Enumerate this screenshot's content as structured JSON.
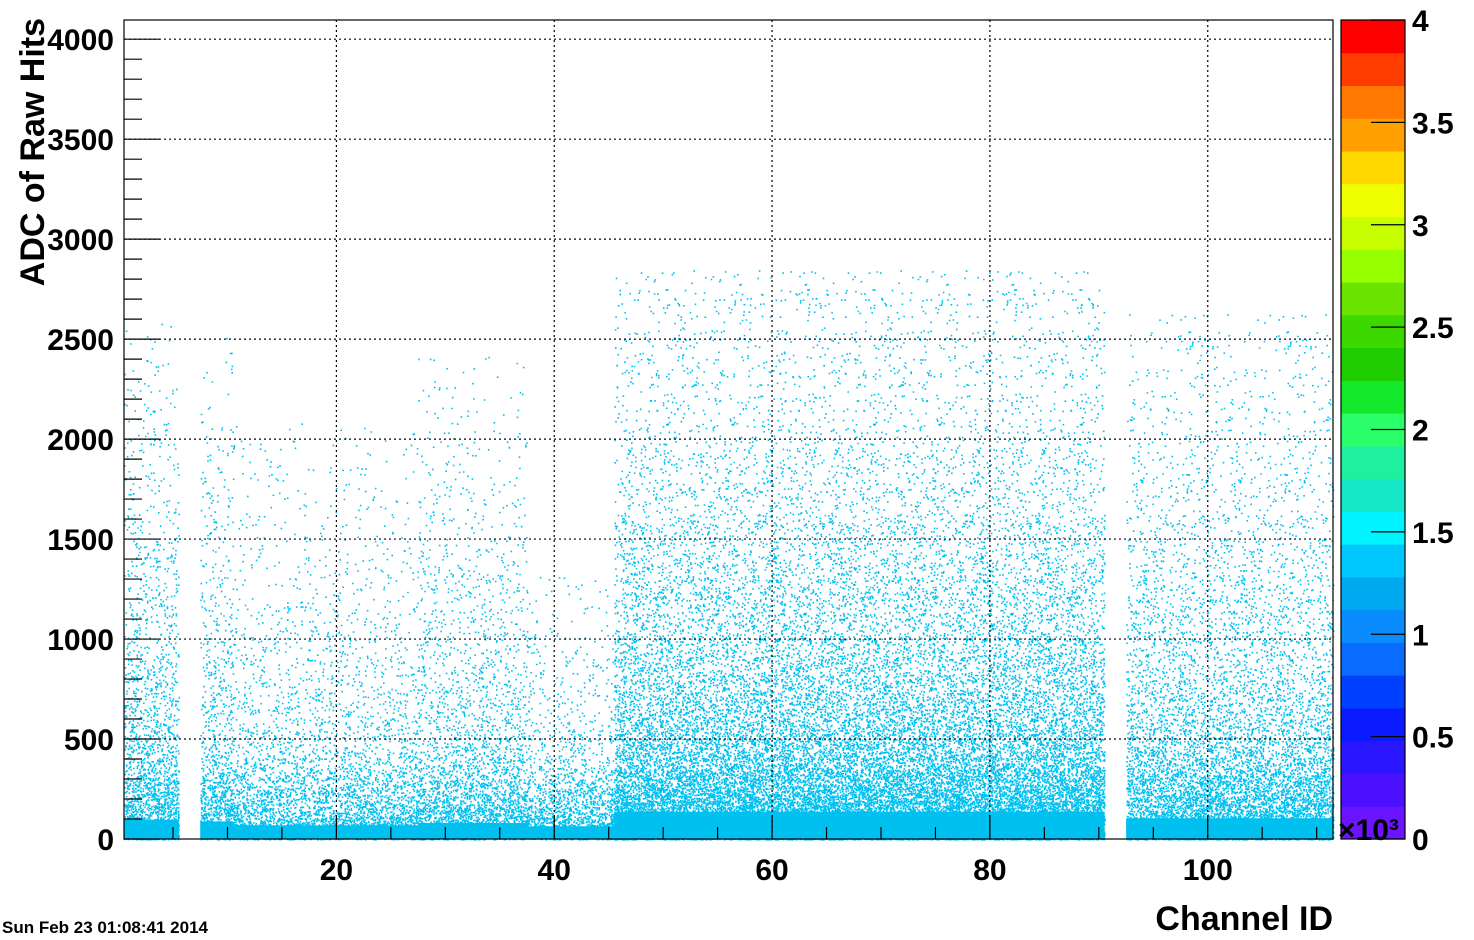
{
  "chart_data": {
    "type": "heatmap",
    "title": "",
    "xlabel": "Channel ID",
    "ylabel": "ADC of Raw Hits",
    "xlim": [
      0.5,
      111.5
    ],
    "ylim": [
      0,
      4096
    ],
    "x_ticks": [
      20,
      40,
      60,
      80,
      100
    ],
    "x_tick_labels": [
      "20",
      "40",
      "60",
      "80",
      "100"
    ],
    "y_ticks": [
      0,
      500,
      1000,
      1500,
      2000,
      2500,
      3000,
      3500,
      4000
    ],
    "y_tick_labels": [
      "0",
      "500",
      "1000",
      "1500",
      "2000",
      "2500",
      "3000",
      "3500",
      "4000"
    ],
    "grid": true,
    "colorbar": {
      "range": [
        0,
        4
      ],
      "multiplier_label": "×10³",
      "ticks": [
        0,
        0.5,
        1,
        1.5,
        2,
        2.5,
        3,
        3.5,
        4
      ],
      "tick_labels": [
        "0",
        "0.5",
        "1",
        "1.5",
        "2",
        "2.5",
        "3",
        "3.5",
        "4"
      ],
      "colors": [
        "#6a14ff",
        "#4b10ff",
        "#2a16ff",
        "#0a1cff",
        "#0040ff",
        "#0a6cff",
        "#0a8cff",
        "#00a8f0",
        "#00c8ff",
        "#00f4ff",
        "#14e8c8",
        "#1ef0a0",
        "#2aff6a",
        "#14e82a",
        "#1ecc00",
        "#3cd800",
        "#6ae400",
        "#96ff00",
        "#c8ff00",
        "#f0ff00",
        "#ffd800",
        "#ffa000",
        "#ff7800",
        "#ff3c00",
        "#ff0000"
      ]
    },
    "hit_color": "#00c0f0",
    "dead_channels": [
      6,
      7,
      91,
      92
    ],
    "channel_density": [
      {
        "channel_range": [
          1,
          5
        ],
        "relative_density": 0.35,
        "adc_extent": 2400
      },
      {
        "channel_range": [
          8,
          10
        ],
        "relative_density": 0.3,
        "adc_extent": 2300
      },
      {
        "channel_range": [
          11,
          27
        ],
        "relative_density": 0.18,
        "adc_extent": 1900
      },
      {
        "channel_range": [
          28,
          37
        ],
        "relative_density": 0.25,
        "adc_extent": 2200
      },
      {
        "channel_range": [
          38,
          45
        ],
        "relative_density": 0.15,
        "adc_extent": 1200
      },
      {
        "channel_range": [
          46,
          90
        ],
        "relative_density": 0.6,
        "adc_extent": 2600
      },
      {
        "channel_range": [
          93,
          111
        ],
        "relative_density": 0.4,
        "adc_extent": 2400
      }
    ],
    "timestamp": "Sun Feb 23 01:08:41 2014"
  }
}
